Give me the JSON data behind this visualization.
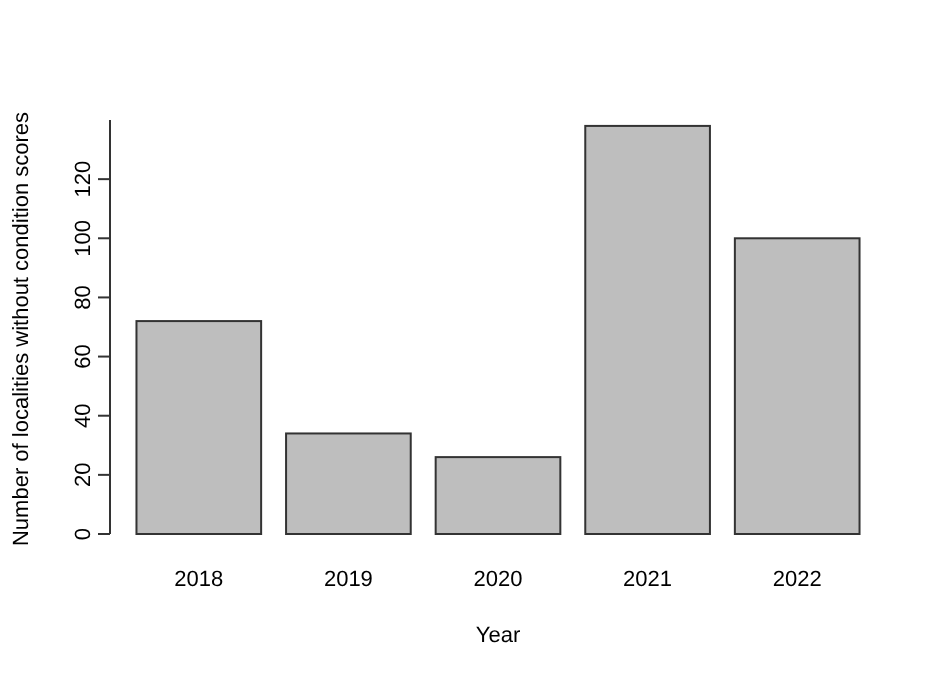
{
  "chart_data": {
    "type": "bar",
    "xlabel": "Year",
    "ylabel": "Number of localities without condition scores",
    "categories": [
      "2018",
      "2019",
      "2020",
      "2021",
      "2022"
    ],
    "values": [
      72,
      34,
      26,
      138,
      100
    ],
    "color": "#bebebe",
    "ylim": [
      0,
      140
    ],
    "yticks": [
      0,
      20,
      40,
      60,
      80,
      100,
      120
    ],
    "grid": false
  }
}
